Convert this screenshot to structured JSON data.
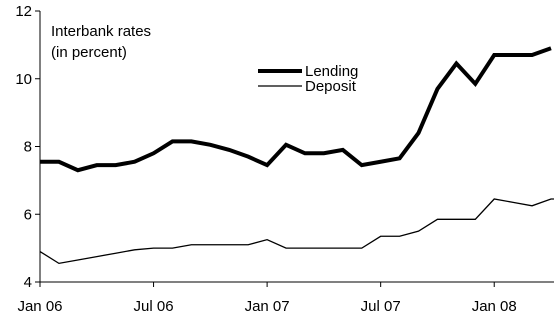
{
  "chart_data": {
    "type": "line",
    "annotation": [
      "Interbank rates",
      "(in percent)"
    ],
    "ylim": [
      4,
      12
    ],
    "yticks": [
      4,
      6,
      8,
      10,
      12
    ],
    "xlim": [
      0,
      27
    ],
    "xticks": [
      {
        "x": 0,
        "label": "Jan 06"
      },
      {
        "x": 6,
        "label": "Jul 06"
      },
      {
        "x": 12,
        "label": "Jan 07"
      },
      {
        "x": 18,
        "label": "Jul 07"
      },
      {
        "x": 24,
        "label": "Jan 08"
      }
    ],
    "legend": "center",
    "grid": false,
    "series": [
      {
        "name": "Lending",
        "color": "#000000",
        "width": 4,
        "values": [
          7.55,
          7.55,
          7.3,
          7.45,
          7.45,
          7.55,
          7.8,
          8.15,
          8.15,
          8.05,
          7.9,
          7.7,
          7.45,
          8.05,
          7.8,
          7.8,
          7.9,
          7.45,
          7.55,
          7.65,
          8.4,
          9.7,
          10.45,
          9.85,
          10.7,
          10.7,
          10.7,
          10.9
        ]
      },
      {
        "name": "Deposit",
        "color": "#000000",
        "width": 1.3,
        "values": [
          4.9,
          4.55,
          4.65,
          4.75,
          4.85,
          4.95,
          5.0,
          5.0,
          5.1,
          5.1,
          5.1,
          5.1,
          5.25,
          5.0,
          5.0,
          5.0,
          5.0,
          5.0,
          5.35,
          5.35,
          5.5,
          5.85,
          5.85,
          5.85,
          6.45,
          6.35,
          6.25,
          6.45,
          6.45
        ]
      }
    ]
  }
}
